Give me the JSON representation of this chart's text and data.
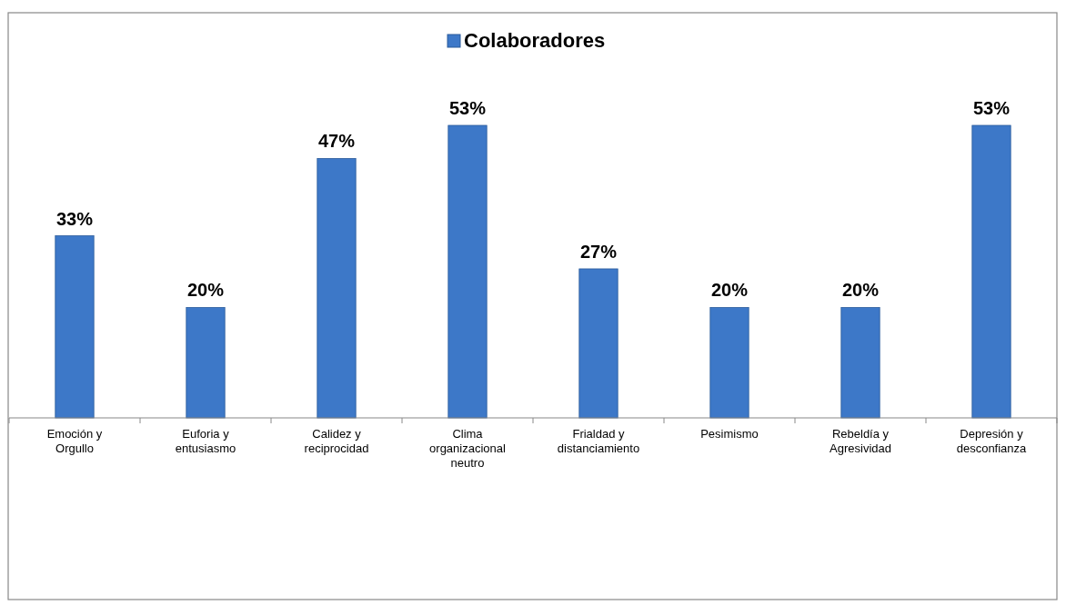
{
  "chart_data": {
    "type": "bar",
    "categories": [
      "Emoción y Orgullo",
      "Euforia y entusiasmo",
      "Calidez y reciprocidad",
      "Clima organizacional neutro",
      "Frialdad y distanciamiento",
      "Pesimismo",
      "Rebeldía y Agresividad",
      "Depresión y desconfianza"
    ],
    "series": [
      {
        "name": "Colaboradores",
        "color": "#3d78c8",
        "values": [
          33,
          20,
          47,
          53,
          27,
          20,
          20,
          53
        ],
        "value_labels": [
          "33%",
          "20%",
          "47%",
          "53%",
          "27%",
          "20%",
          "20%",
          "53%"
        ]
      }
    ],
    "legend": "top"
  }
}
